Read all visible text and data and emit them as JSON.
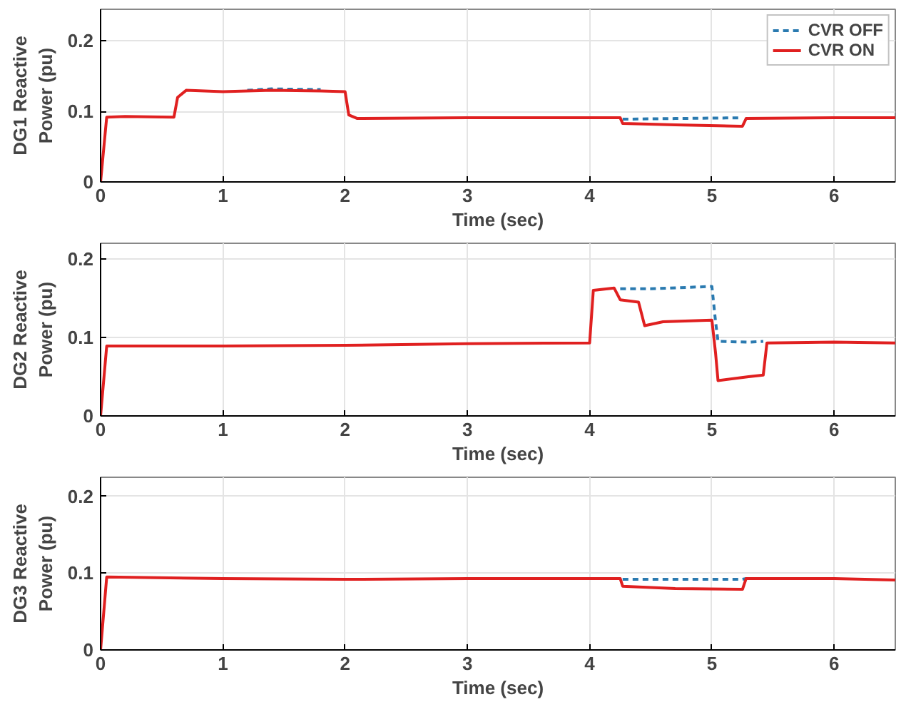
{
  "chart_data": [
    {
      "type": "line",
      "xlabel": "Time (sec)",
      "ylabel": "DG1 Reactive Power (pu)",
      "xlim": [
        0,
        6.5
      ],
      "ylim": [
        0,
        0.245
      ],
      "xticks": [
        0,
        1,
        2,
        3,
        4,
        5,
        6
      ],
      "yticks": [
        0,
        0.1,
        0.2
      ],
      "grid": true,
      "legend": "top right",
      "series": [
        {
          "name": "CVR OFF",
          "color": "#2a7ab0",
          "line_style": "dashed",
          "x": [
            1.2,
            1.4,
            1.8,
            3.0,
            4.27,
            4.7,
            5.25
          ],
          "values": [
            0.13,
            0.132,
            0.131,
            null,
            0.089,
            0.09,
            0.091
          ]
        },
        {
          "name": "CVR ON",
          "color": "#e02020",
          "line_style": "solid",
          "x": [
            0,
            0.05,
            0.2,
            0.6,
            0.63,
            0.7,
            1.0,
            1.4,
            1.8,
            2.0,
            2.03,
            2.1,
            3.0,
            4.25,
            4.27,
            4.7,
            5.25,
            5.28,
            6.0,
            6.5
          ],
          "values": [
            0,
            0.092,
            0.093,
            0.092,
            0.12,
            0.13,
            0.128,
            0.13,
            0.129,
            0.128,
            0.095,
            0.09,
            0.091,
            0.091,
            0.083,
            0.081,
            0.079,
            0.09,
            0.091,
            0.091
          ]
        }
      ]
    },
    {
      "type": "line",
      "xlabel": "Time (sec)",
      "ylabel": "DG2 Reactive Power (pu)",
      "xlim": [
        0,
        6.5
      ],
      "ylim": [
        0,
        0.22
      ],
      "xticks": [
        0,
        1,
        2,
        3,
        4,
        5,
        6
      ],
      "yticks": [
        0,
        0.1,
        0.2
      ],
      "grid": true,
      "series": [
        {
          "color": "#2a7ab0",
          "line_style": "dashed",
          "x": [
            4.25,
            4.5,
            5.0,
            5.03,
            5.05,
            5.3,
            5.42
          ],
          "values": [
            0.162,
            0.162,
            0.165,
            0.12,
            0.095,
            0.094,
            0.095
          ]
        },
        {
          "color": "#e02020",
          "line_style": "solid",
          "x": [
            0,
            0.05,
            1,
            2,
            3,
            4.0,
            4.03,
            4.2,
            4.25,
            4.4,
            4.45,
            4.6,
            5.0,
            5.03,
            5.05,
            5.3,
            5.42,
            5.45,
            6,
            6.5
          ],
          "values": [
            0,
            0.089,
            0.089,
            0.09,
            0.092,
            0.093,
            0.16,
            0.163,
            0.148,
            0.145,
            0.115,
            0.12,
            0.122,
            0.08,
            0.045,
            0.05,
            0.052,
            0.093,
            0.094,
            0.093
          ]
        }
      ]
    },
    {
      "type": "line",
      "xlabel": "Time (sec)",
      "ylabel": "DG3 Reactive Power (pu)",
      "xlim": [
        0,
        6.5
      ],
      "ylim": [
        0,
        0.225
      ],
      "xticks": [
        0,
        1,
        2,
        3,
        4,
        5,
        6
      ],
      "yticks": [
        0,
        0.1,
        0.2
      ],
      "grid": true,
      "series": [
        {
          "color": "#2a7ab0",
          "line_style": "dashed",
          "x": [
            4.27,
            4.7,
            5.25,
            5.28
          ],
          "values": [
            0.092,
            0.092,
            0.092,
            0.093
          ]
        },
        {
          "color": "#e02020",
          "line_style": "solid",
          "x": [
            0,
            0.05,
            1,
            2,
            3,
            4.25,
            4.27,
            4.7,
            5.25,
            5.28,
            6,
            6.5
          ],
          "values": [
            0,
            0.095,
            0.093,
            0.092,
            0.093,
            0.093,
            0.083,
            0.08,
            0.079,
            0.093,
            0.093,
            0.091
          ]
        }
      ]
    }
  ]
}
